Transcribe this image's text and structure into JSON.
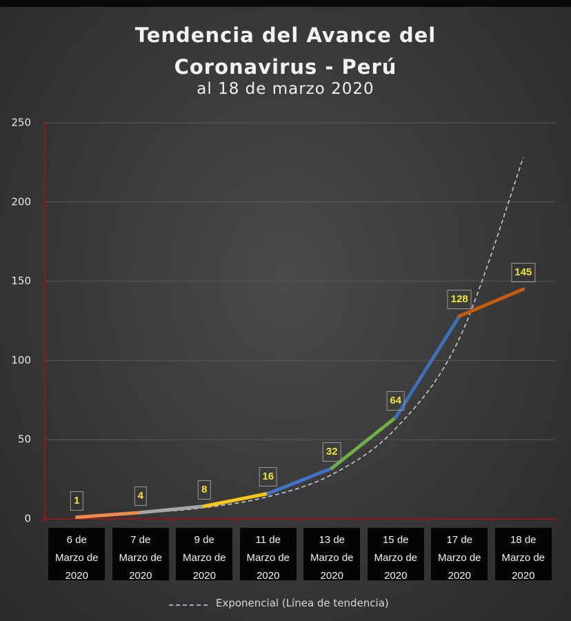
{
  "chart_data": {
    "type": "line",
    "title": "Tendencia del Avance del Coronavirus - Perú",
    "subtitle": "al 18 de marzo 2020",
    "categories": [
      "6 de Marzo de 2020",
      "7 de Marzo de 2020",
      "9 de Marzo de 2020",
      "11 de Marzo de 2020",
      "13 de Marzo de 2020",
      "15 de Marzo de 2020",
      "17 de Marzo de 2020",
      "18 de Marzo de 2020"
    ],
    "values": [
      1,
      4,
      8,
      16,
      32,
      64,
      128,
      145
    ],
    "segment_colors": [
      "#f08a4b",
      "#a5a5a5",
      "#f5c518",
      "#4472c4",
      "#70ad47",
      "#3f6fb8",
      "#c55a11"
    ],
    "trendline": {
      "name": "Exponencial (Línea de tendencia)",
      "color": "#c9d6ea",
      "values": [
        1.8,
        3.6,
        7.1,
        14,
        28,
        57,
        114,
        228
      ]
    },
    "ylim": [
      0,
      250
    ],
    "yticks": [
      0,
      50,
      100,
      150,
      200,
      250
    ],
    "grid": true
  }
}
